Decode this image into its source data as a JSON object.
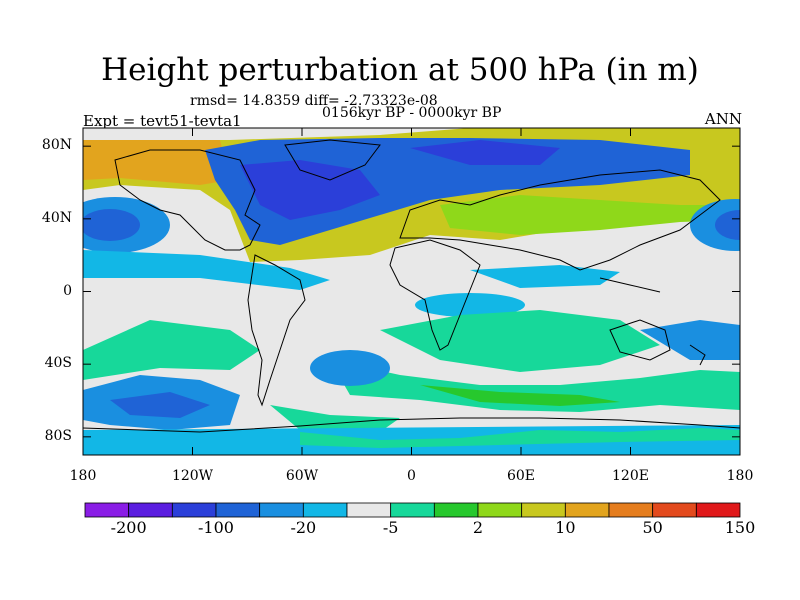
{
  "title": "Height perturbation at 500 hPa (in m)",
  "stats": "rmsd= 14.8359 diff= -2.73323e-08",
  "period": "0156kyr BP - 0000kyr BP",
  "experiment": "Expt = tevt51-tevta1",
  "season": "ANN",
  "map": {
    "lat_ticks": [
      "80N",
      "40N",
      "0",
      "40S",
      "80S"
    ],
    "lat_values": [
      80,
      40,
      0,
      -40,
      -80
    ],
    "lon_ticks": [
      "180",
      "120W",
      "60W",
      "0",
      "60E",
      "120E",
      "180"
    ],
    "lon_values": [
      -180,
      -120,
      -60,
      0,
      60,
      120,
      180
    ]
  },
  "colorbar": {
    "labels": [
      "-200",
      "-100",
      "-20",
      "-5",
      "2",
      "10",
      "50",
      "150"
    ],
    "colors": [
      "#8a1de6",
      "#5b1ee0",
      "#2b3fd9",
      "#1f63d6",
      "#1a8fe0",
      "#12b7e6",
      "#e8e8e8",
      "#17d89a",
      "#27c82d",
      "#8fd81a",
      "#c8c81f",
      "#e2a41e",
      "#e57d1e",
      "#e34a1d",
      "#e0181a"
    ]
  },
  "icons": [
    "contour-map",
    "colorbar"
  ]
}
